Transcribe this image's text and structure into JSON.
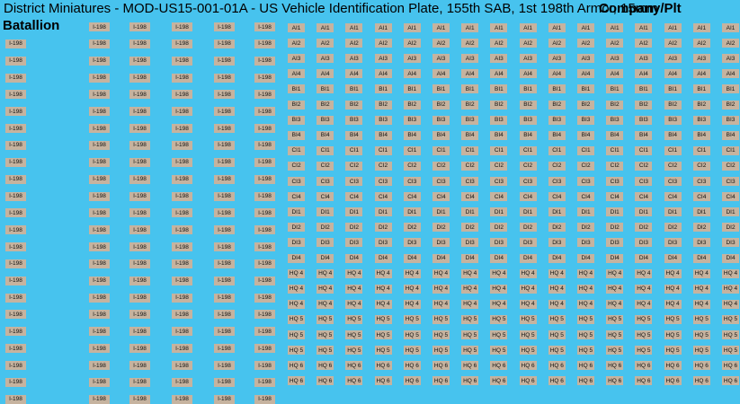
{
  "title": "District Miniatures - MOD-US15-001-01A - US Vehicle Identification Plate, 155th SAB, 1st 198th Armor, 15mm",
  "battalion_heading": "Batallion",
  "company_heading": "Company/Plt",
  "colors": {
    "background": "#47c3ee",
    "plate": "#c6b39f",
    "text": "#111111"
  },
  "battalion": {
    "label": "I-198",
    "columns": [
      {
        "rows": 22,
        "first_row": 1
      },
      {
        "rows": 23,
        "first_row": 0
      },
      {
        "rows": 23,
        "first_row": 0
      },
      {
        "rows": 23,
        "first_row": 0
      },
      {
        "rows": 23,
        "first_row": 0
      },
      {
        "rows": 23,
        "first_row": 0
      }
    ]
  },
  "company": {
    "columns": 16,
    "rows": [
      "AI1",
      "AI2",
      "AI3",
      "AI4",
      "BI1",
      "BI2",
      "BI3",
      "BI4",
      "CI1",
      "CI2",
      "CI3",
      "CI4",
      "DI1",
      "DI2",
      "DI3",
      "DI4",
      "HQ 4",
      "HQ 4",
      "HQ 4",
      "HQ 5",
      "HQ 5",
      "HQ 5",
      "HQ 6",
      "HQ 6"
    ]
  }
}
